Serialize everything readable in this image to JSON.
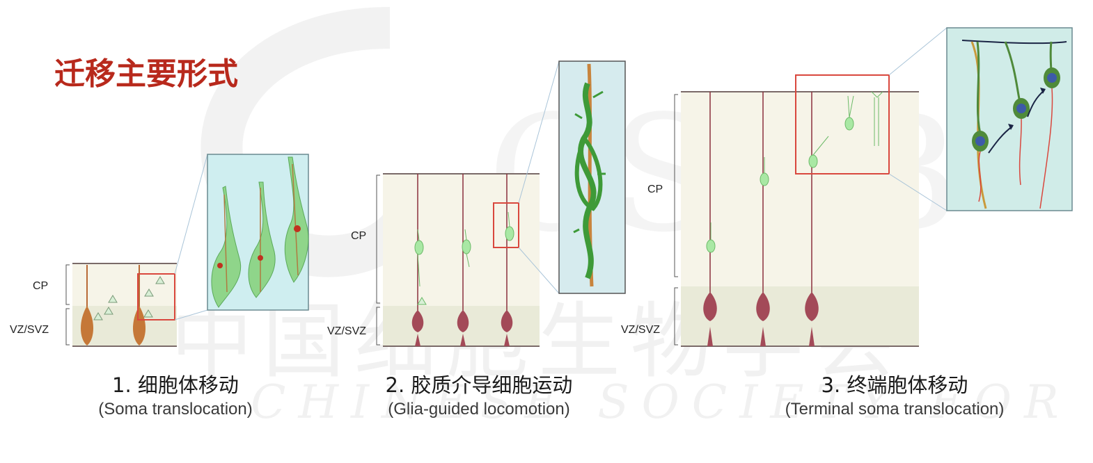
{
  "slide": {
    "title": "迁移主要形式",
    "watermark_cn": "中国细胞生物学会",
    "watermark_en": "CHINESE SOCIETY FOR CELL BIOLOGY",
    "watermark_logo": "CSCB"
  },
  "panels": [
    {
      "id": "soma",
      "zone_labels": {
        "cp": "CP",
        "vz": "VZ/SVZ"
      },
      "caption_cn": "1. 细胞体移动",
      "caption_en": "(Soma translocation)"
    },
    {
      "id": "glia",
      "zone_labels": {
        "cp": "CP",
        "vz": "VZ/SVZ"
      },
      "caption_cn": "2. 胶质介导细胞运动",
      "caption_en": "(Glia-guided locomotion)"
    },
    {
      "id": "terminal",
      "zone_labels": {
        "cp": "CP",
        "vz": "VZ/SVZ"
      },
      "caption_cn": "3. 终端胞体移动",
      "caption_en": "(Terminal soma translocation)"
    }
  ],
  "colors": {
    "title": "#b8291c",
    "radial_glia": "#8a2f3c",
    "neuron_green": "#9fe29a",
    "highlight_box": "#d9473d",
    "inset_bg": "#cfeef0"
  }
}
